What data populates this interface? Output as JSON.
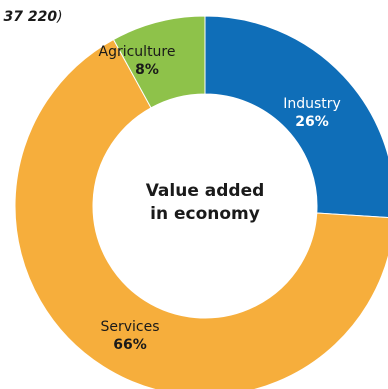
{
  "header": {
    "value_text": "37 220",
    "close_paren": ")",
    "leading_fragment": "-"
  },
  "chart_data": {
    "type": "pie",
    "center_label": [
      "Value added",
      "in economy"
    ],
    "categories": [
      "Industry",
      "Services",
      "Agriculture"
    ],
    "values": [
      26,
      66,
      8
    ],
    "labels_pct": [
      "26%",
      "66%",
      "8%"
    ],
    "colors": {
      "Industry": "#0f6eb8",
      "Services": "#f6ae3c",
      "Agriculture": "#8ec24a",
      "Industry_label": "#ffffff",
      "Services_label": "#1a1a1a",
      "Agriculture_label": "#1a1a1a"
    }
  }
}
